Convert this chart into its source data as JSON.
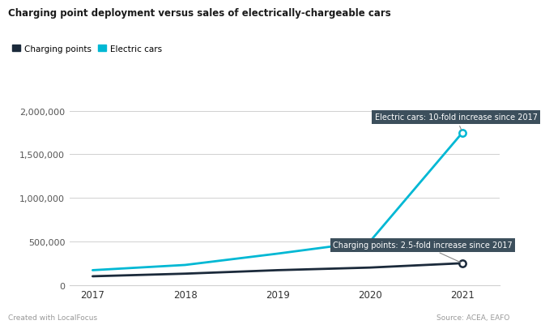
{
  "title": "Charging point deployment versus sales of electrically-chargeable cars",
  "years": [
    2017,
    2018,
    2019,
    2020,
    2021
  ],
  "charging_points": [
    100000,
    130000,
    170000,
    200000,
    250000
  ],
  "electric_cars": [
    170000,
    230000,
    360000,
    500000,
    1750000
  ],
  "charging_color": "#1b2a3b",
  "electric_color": "#00b8d4",
  "background_color": "#ffffff",
  "grid_color": "#d0d0d0",
  "annotation_bg": "#3c4f5c",
  "annotation_text_color": "#ffffff",
  "label_charging": "Charging points",
  "label_electric": "Electric cars",
  "annotation_electric": "Electric cars: 10-fold increase since 2017",
  "annotation_charging": "Charging points: 2.5-fold increase since 2017",
  "footer_left": "Created with LocalFocus",
  "footer_right": "Source: ACEA, EAFO",
  "ylim": [
    0,
    2100000
  ],
  "yticks": [
    0,
    500000,
    1000000,
    1500000,
    2000000
  ]
}
